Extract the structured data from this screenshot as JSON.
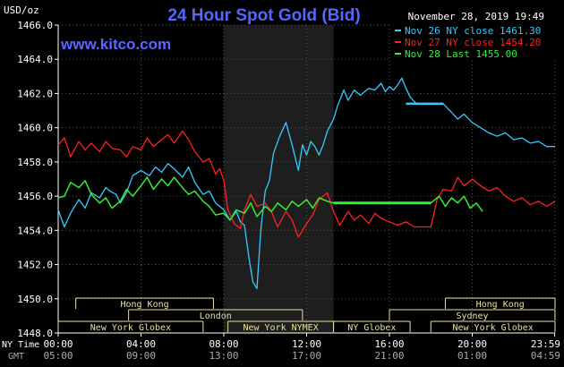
{
  "header": {
    "title": "24 Hour Spot Gold (Bid)",
    "timestamp": "November 28, 2019 19:49",
    "unit": "USD/oz",
    "watermark": "www.kitco.com"
  },
  "legend": [
    {
      "label": "Nov 26 NY close 1461.30",
      "color": "#33ccff"
    },
    {
      "label": "Nov 27 NY close 1454.20",
      "color": "#ff2020"
    },
    {
      "label": "Nov 28 Last 1455.00",
      "color": "#33ee33"
    }
  ],
  "axis_labels": {
    "ny_time": "NY Time",
    "gmt": "GMT"
  },
  "sessions": [
    {
      "label": "Hong Kong",
      "row": 0,
      "start": 0.85,
      "end": 7.5
    },
    {
      "label": "Hong Kong",
      "row": 0,
      "start": 18.7,
      "end": 24.0
    },
    {
      "label": "London",
      "row": 1,
      "start": 3.4,
      "end": 11.8
    },
    {
      "label": "Sydney",
      "row": 1,
      "start": 16.0,
      "end": 24.0
    },
    {
      "label": "New York Globex",
      "row": 2,
      "start": 0.0,
      "end": 7.0
    },
    {
      "label": "New York NYMEX",
      "row": 2,
      "start": 8.2,
      "end": 13.3
    },
    {
      "label": "NY Globex",
      "row": 2,
      "start": 13.3,
      "end": 17.0
    },
    {
      "label": "New York Globex",
      "row": 2,
      "start": 18.0,
      "end": 24.0
    }
  ],
  "chart_data": {
    "type": "line",
    "ylim": [
      1448.0,
      1466.0
    ],
    "yticks": [
      "1448.0",
      "1450.0",
      "1452.0",
      "1454.0",
      "1456.0",
      "1458.0",
      "1460.0",
      "1462.0",
      "1464.0",
      "1466.0"
    ],
    "xlim": [
      0,
      24
    ],
    "xticks": [
      {
        "h": 0,
        "ny": "00:00",
        "gmt": "05:00"
      },
      {
        "h": 4,
        "ny": "04:00",
        "gmt": "09:00"
      },
      {
        "h": 8,
        "ny": "08:00",
        "gmt": "13:00"
      },
      {
        "h": 12,
        "ny": "12:00",
        "gmt": "17:00"
      },
      {
        "h": 16,
        "ny": "16:00",
        "gmt": "21:00"
      },
      {
        "h": 20,
        "ny": "20:00",
        "gmt": "01:00"
      },
      {
        "h": 23.983,
        "ny": "23:59",
        "gmt": "04:59"
      }
    ],
    "shaded_range": [
      8.0,
      13.3
    ],
    "series": [
      {
        "name": "Nov 26 NY close 1461.30",
        "color": "#33ccff",
        "x": [
          0.0,
          0.3,
          0.6,
          1.0,
          1.3,
          1.6,
          2.0,
          2.3,
          2.5,
          2.8,
          3.0,
          3.3,
          3.6,
          4.0,
          4.4,
          4.7,
          5.0,
          5.3,
          5.6,
          6.0,
          6.3,
          6.6,
          7.0,
          7.3,
          7.6,
          8.0,
          8.3,
          8.6,
          8.8,
          9.0,
          9.2,
          9.4,
          9.6,
          9.8,
          10.0,
          10.2,
          10.4,
          10.7,
          11.0,
          11.3,
          11.6,
          11.8,
          12.0,
          12.2,
          12.4,
          12.6,
          12.8,
          13.0,
          13.3,
          13.5,
          13.8,
          14.0,
          14.3,
          14.6,
          15.0,
          15.3,
          15.6,
          15.8,
          16.0,
          16.2,
          16.4,
          16.6,
          16.8,
          17.0,
          17.3,
          17.6,
          18.0,
          18.3,
          18.6,
          19.0,
          19.3,
          19.6,
          20.0,
          20.4,
          20.8,
          21.2,
          21.6,
          22.0,
          22.4,
          22.8,
          23.2,
          23.6,
          24.0
        ],
        "y": [
          1455.2,
          1454.2,
          1455.0,
          1455.8,
          1455.3,
          1456.2,
          1455.9,
          1456.5,
          1456.3,
          1456.1,
          1455.6,
          1456.2,
          1457.2,
          1457.5,
          1457.2,
          1457.7,
          1457.4,
          1457.9,
          1457.6,
          1457.1,
          1457.7,
          1456.8,
          1456.1,
          1456.3,
          1455.6,
          1455.2,
          1454.6,
          1455.1,
          1454.5,
          1454.3,
          1452.5,
          1451.0,
          1450.6,
          1454.2,
          1456.3,
          1456.9,
          1458.5,
          1459.5,
          1460.3,
          1459.0,
          1457.5,
          1459.0,
          1458.4,
          1459.2,
          1458.9,
          1458.4,
          1459.0,
          1459.8,
          1460.5,
          1461.3,
          1462.2,
          1461.6,
          1462.2,
          1461.9,
          1462.3,
          1462.2,
          1462.6,
          1462.1,
          1462.4,
          1462.2,
          1462.5,
          1462.9,
          1462.3,
          1461.8,
          1461.4,
          1461.4,
          1461.4,
          1461.4,
          1461.4,
          1460.9,
          1460.5,
          1460.8,
          1460.3,
          1460.0,
          1459.7,
          1459.5,
          1459.7,
          1459.3,
          1459.4,
          1459.1,
          1459.2,
          1458.9,
          1458.9
        ]
      },
      {
        "name": "Nov 27 NY close 1454.20",
        "color": "#ff2020",
        "x": [
          0.0,
          0.3,
          0.6,
          1.0,
          1.3,
          1.6,
          2.0,
          2.3,
          2.6,
          3.0,
          3.3,
          3.6,
          4.0,
          4.3,
          4.6,
          5.0,
          5.3,
          5.6,
          6.0,
          6.3,
          6.6,
          7.0,
          7.3,
          7.6,
          7.8,
          8.0,
          8.2,
          8.5,
          8.8,
          9.0,
          9.3,
          9.6,
          10.0,
          10.3,
          10.6,
          11.0,
          11.3,
          11.6,
          12.0,
          12.3,
          12.6,
          13.0,
          13.3,
          13.6,
          14.0,
          14.3,
          14.6,
          15.0,
          15.3,
          15.6,
          16.0,
          16.4,
          16.8,
          17.2,
          17.6,
          18.0,
          18.3,
          18.6,
          19.0,
          19.3,
          19.6,
          20.0,
          20.4,
          20.8,
          21.2,
          21.6,
          22.0,
          22.4,
          22.8,
          23.2,
          23.6,
          24.0
        ],
        "y": [
          1459.0,
          1459.4,
          1458.3,
          1459.2,
          1458.7,
          1459.1,
          1458.6,
          1459.2,
          1458.8,
          1458.7,
          1458.3,
          1458.9,
          1458.7,
          1459.4,
          1458.9,
          1459.3,
          1459.6,
          1459.1,
          1459.8,
          1459.3,
          1458.6,
          1458.0,
          1458.2,
          1457.3,
          1457.6,
          1456.9,
          1455.2,
          1454.4,
          1454.1,
          1455.2,
          1456.1,
          1455.4,
          1455.6,
          1455.1,
          1454.2,
          1455.1,
          1454.6,
          1453.6,
          1454.4,
          1454.9,
          1455.8,
          1456.2,
          1455.1,
          1454.3,
          1455.1,
          1454.6,
          1454.9,
          1454.4,
          1455.0,
          1454.7,
          1454.5,
          1454.3,
          1454.5,
          1454.2,
          1454.2,
          1454.2,
          1455.8,
          1456.4,
          1456.3,
          1457.1,
          1456.6,
          1457.0,
          1456.6,
          1456.3,
          1456.5,
          1456.0,
          1455.7,
          1455.9,
          1455.5,
          1455.7,
          1455.4,
          1455.7
        ]
      },
      {
        "name": "Nov 28 Last 1455.00",
        "color": "#33ee33",
        "x": [
          0.0,
          0.3,
          0.6,
          1.0,
          1.3,
          1.6,
          2.0,
          2.3,
          2.6,
          3.0,
          3.3,
          3.6,
          4.0,
          4.3,
          4.6,
          5.0,
          5.3,
          5.6,
          6.0,
          6.3,
          6.6,
          7.0,
          7.3,
          7.6,
          8.0,
          8.3,
          8.6,
          9.0,
          9.3,
          9.6,
          10.0,
          10.3,
          10.6,
          11.0,
          11.3,
          11.6,
          12.0,
          12.3,
          12.6,
          13.0,
          13.3,
          14.0,
          16.0,
          18.0,
          18.4,
          18.7,
          19.0,
          19.3,
          19.6,
          19.9,
          20.2,
          20.5
        ],
        "y": [
          1455.9,
          1456.0,
          1456.8,
          1456.5,
          1456.9,
          1456.1,
          1455.6,
          1455.9,
          1455.3,
          1455.7,
          1456.4,
          1456.0,
          1456.6,
          1457.1,
          1456.4,
          1457.0,
          1456.6,
          1457.1,
          1456.5,
          1456.1,
          1456.3,
          1455.7,
          1455.4,
          1454.9,
          1455.0,
          1454.6,
          1455.2,
          1455.0,
          1455.6,
          1454.8,
          1455.4,
          1455.1,
          1455.6,
          1455.2,
          1455.7,
          1455.4,
          1455.8,
          1455.3,
          1455.9,
          1455.7,
          1455.6,
          1455.6,
          1455.6,
          1455.6,
          1456.0,
          1455.4,
          1455.9,
          1455.6,
          1456.0,
          1455.3,
          1455.6,
          1455.1
        ]
      }
    ]
  }
}
